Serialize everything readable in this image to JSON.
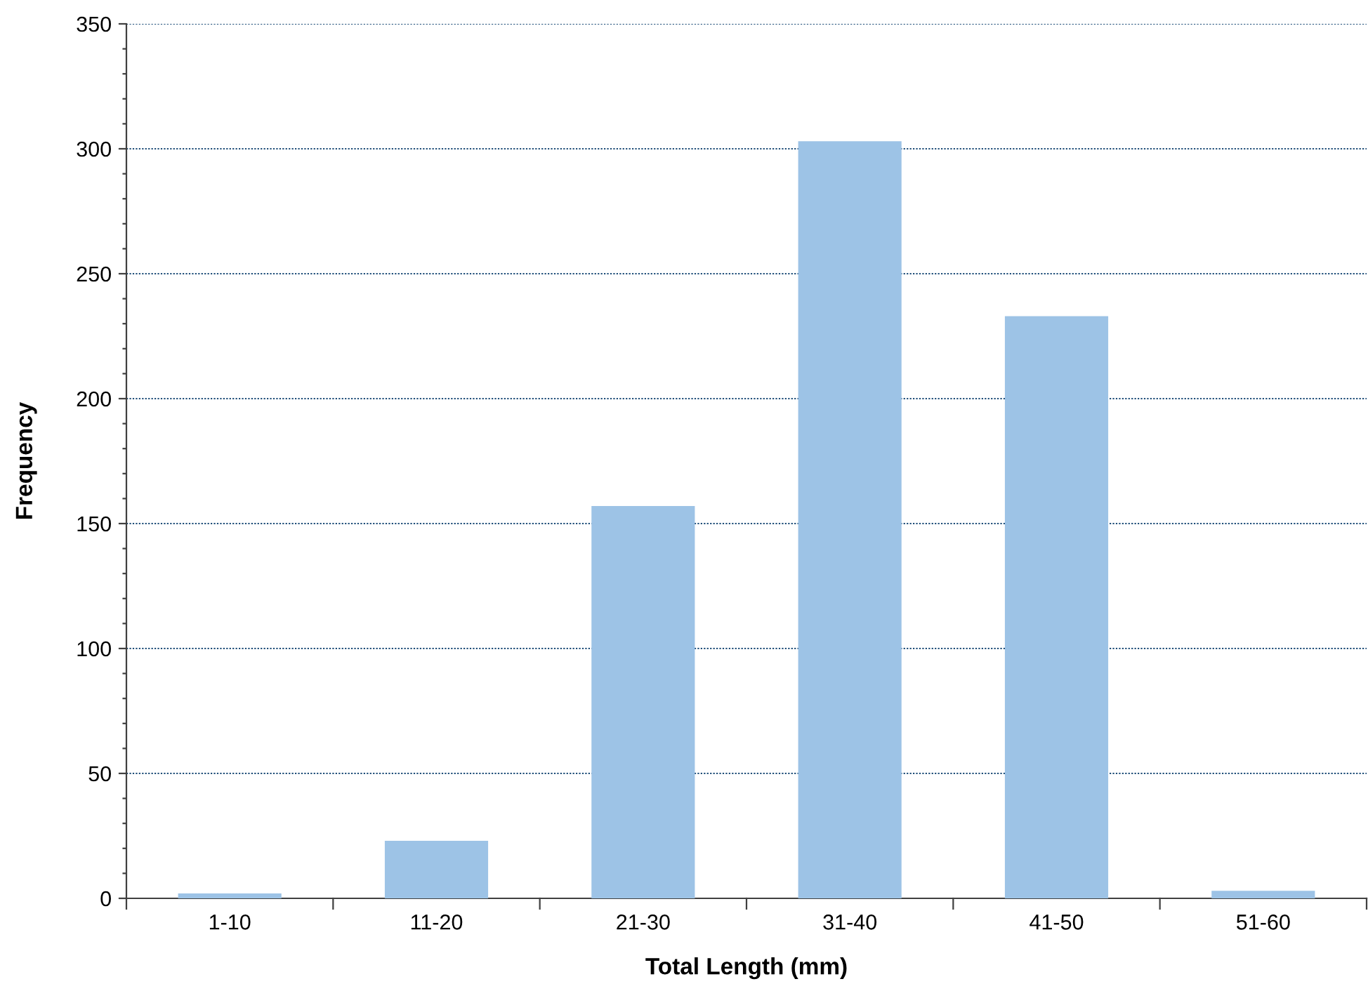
{
  "chart_data": {
    "type": "bar",
    "xlabel": "Total Length (mm)",
    "ylabel": "Frequency",
    "categories": [
      "1-10",
      "11-20",
      "21-30",
      "31-40",
      "41-50",
      "51-60"
    ],
    "values": [
      2,
      23,
      157,
      303,
      233,
      3
    ],
    "color": "#9dc3e6",
    "ylim": [
      0,
      350
    ],
    "yticks": [
      0,
      {
        "value": 10,
        "label": null
      },
      {
        "value": 20,
        "label": null
      },
      {
        "value": 30,
        "label": null
      },
      {
        "value": 40,
        "label": null
      },
      50,
      {
        "value": 60,
        "label": null
      },
      {
        "value": 70,
        "label": null
      },
      {
        "value": 80,
        "label": null
      },
      {
        "value": 90,
        "label": null
      },
      100,
      {
        "value": 110,
        "label": null
      },
      {
        "value": 120,
        "label": null
      },
      {
        "value": 130,
        "label": null
      },
      {
        "value": 140,
        "label": null
      },
      150,
      {
        "value": 160,
        "label": null
      },
      {
        "value": 170,
        "label": null
      },
      {
        "value": 180,
        "label": null
      },
      {
        "value": 190,
        "label": null
      },
      200,
      {
        "value": 210,
        "label": null
      },
      {
        "value": 220,
        "label": null
      },
      {
        "value": 230,
        "label": null
      },
      {
        "value": 240,
        "label": null
      },
      250,
      {
        "value": 260,
        "label": null
      },
      {
        "value": 270,
        "label": null
      },
      {
        "value": 280,
        "label": null
      },
      {
        "value": 290,
        "label": null
      },
      300,
      {
        "value": 310,
        "label": null
      },
      {
        "value": 320,
        "label": null
      },
      {
        "value": 330,
        "label": null
      },
      {
        "value": 340,
        "label": null
      },
      350
    ],
    "grid": "y"
  }
}
